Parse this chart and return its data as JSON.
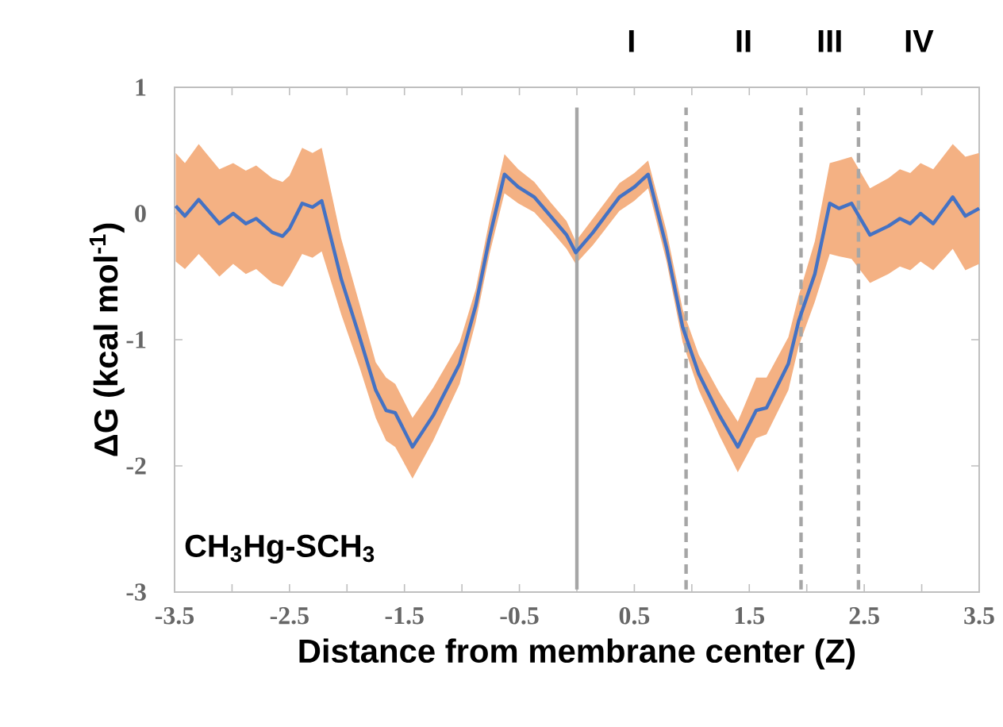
{
  "chart_data": {
    "type": "line",
    "xlabel": "Distance from membrane center (Z)",
    "ylabel": "ΔG (kcal mol$^{-1}$)",
    "xlim": [
      -3.5,
      3.5
    ],
    "xticks": [
      -3.5,
      {
        "value": -3,
        "label": null
      },
      -2.5,
      {
        "value": -2,
        "label": null
      },
      -1.5,
      {
        "value": -1,
        "label": null
      },
      -0.5,
      {
        "value": 0,
        "label": null
      },
      0.5,
      {
        "value": 1,
        "label": null
      },
      1.5,
      {
        "value": 2,
        "label": null
      },
      2.5,
      {
        "value": 3,
        "label": null
      },
      3.5
    ],
    "ylim": [
      -3,
      1
    ],
    "yticks": [
      -3,
      -2,
      -1,
      0,
      1
    ],
    "ref_lines": [
      {
        "axis": "x",
        "value": 0,
        "color": "#a6a6a6",
        "line_style": "solid"
      },
      {
        "axis": "x",
        "value": 0.95,
        "color": "#a6a6a6",
        "line_style": "dashed"
      },
      {
        "axis": "x",
        "value": 1.95,
        "color": "#a6a6a6",
        "line_style": "dashed"
      },
      {
        "axis": "x",
        "value": 2.45,
        "color": "#a6a6a6",
        "line_style": "dashed"
      }
    ],
    "annotations": [
      "CH$_{3}$Hg-SCH$_{3}$",
      "I",
      "II",
      "III",
      "IV"
    ],
    "series": [
      {
        "color": "#4472c4",
        "line_style": "solid",
        "marker": "none",
        "x": [
          -3.49,
          -3.41,
          -3.29,
          -3.11,
          -2.99,
          -2.88,
          -2.79,
          -2.65,
          -2.56,
          -2.5,
          -2.39,
          -2.3,
          -2.22,
          -2.05,
          -1.89,
          -1.75,
          -1.66,
          -1.58,
          -1.43,
          -1.25,
          -1.02,
          -0.88,
          -0.76,
          -0.63,
          -0.51,
          -0.37,
          -0.23,
          -0.09,
          -0.01,
          0.14,
          0.37,
          0.5,
          0.62,
          0.78,
          0.92,
          1.06,
          1.24,
          1.4,
          1.56,
          1.65,
          1.84,
          1.93,
          2.07,
          2.2,
          2.28,
          2.39,
          2.55,
          2.71,
          2.81,
          2.9,
          2.99,
          3.1,
          3.27,
          3.38,
          3.5
        ],
        "values": [
          0.06,
          -0.02,
          0.11,
          -0.08,
          0,
          -0.08,
          -0.04,
          -0.15,
          -0.18,
          -0.12,
          0.08,
          0.05,
          0.1,
          -0.52,
          -0.98,
          -1.4,
          -1.56,
          -1.58,
          -1.85,
          -1.6,
          -1.19,
          -0.73,
          -0.19,
          0.31,
          0.21,
          0.13,
          -0.02,
          -0.17,
          -0.31,
          -0.15,
          0.13,
          0.21,
          0.31,
          -0.27,
          -0.9,
          -1.27,
          -1.6,
          -1.85,
          -1.56,
          -1.54,
          -1.19,
          -0.85,
          -0.48,
          0.08,
          0.04,
          0.08,
          -0.17,
          -0.1,
          -0.04,
          -0.08,
          0,
          -0.08,
          0.13,
          -0.02,
          0.04
        ],
        "lower": [
          -0.38,
          -0.44,
          -0.32,
          -0.5,
          -0.4,
          -0.48,
          -0.44,
          -0.55,
          -0.58,
          -0.5,
          -0.32,
          -0.35,
          -0.3,
          -0.8,
          -1.22,
          -1.62,
          -1.8,
          -1.85,
          -2.1,
          -1.8,
          -1.35,
          -0.86,
          -0.32,
          0.16,
          0.08,
          0.01,
          -0.13,
          -0.28,
          -0.4,
          -0.25,
          0.02,
          0.1,
          0.2,
          -0.38,
          -1.02,
          -1.4,
          -1.76,
          -2.05,
          -1.78,
          -1.75,
          -1.4,
          -1.05,
          -0.7,
          -0.32,
          -0.34,
          -0.36,
          -0.55,
          -0.48,
          -0.42,
          -0.45,
          -0.38,
          -0.45,
          -0.28,
          -0.45,
          -0.4
        ],
        "upper": [
          0.48,
          0.4,
          0.55,
          0.35,
          0.4,
          0.34,
          0.38,
          0.28,
          0.25,
          0.3,
          0.52,
          0.48,
          0.52,
          -0.2,
          -0.72,
          -1.18,
          -1.3,
          -1.35,
          -1.62,
          -1.38,
          -1.02,
          -0.6,
          -0.05,
          0.47,
          0.35,
          0.25,
          0.09,
          -0.06,
          -0.22,
          -0.04,
          0.24,
          0.32,
          0.42,
          -0.14,
          -0.76,
          -1.12,
          -1.42,
          -1.65,
          -1.3,
          -1.3,
          -0.98,
          -0.65,
          -0.22,
          0.4,
          0.42,
          0.45,
          0.2,
          0.28,
          0.35,
          0.32,
          0.4,
          0.35,
          0.55,
          0.45,
          0.48
        ]
      }
    ]
  }
}
